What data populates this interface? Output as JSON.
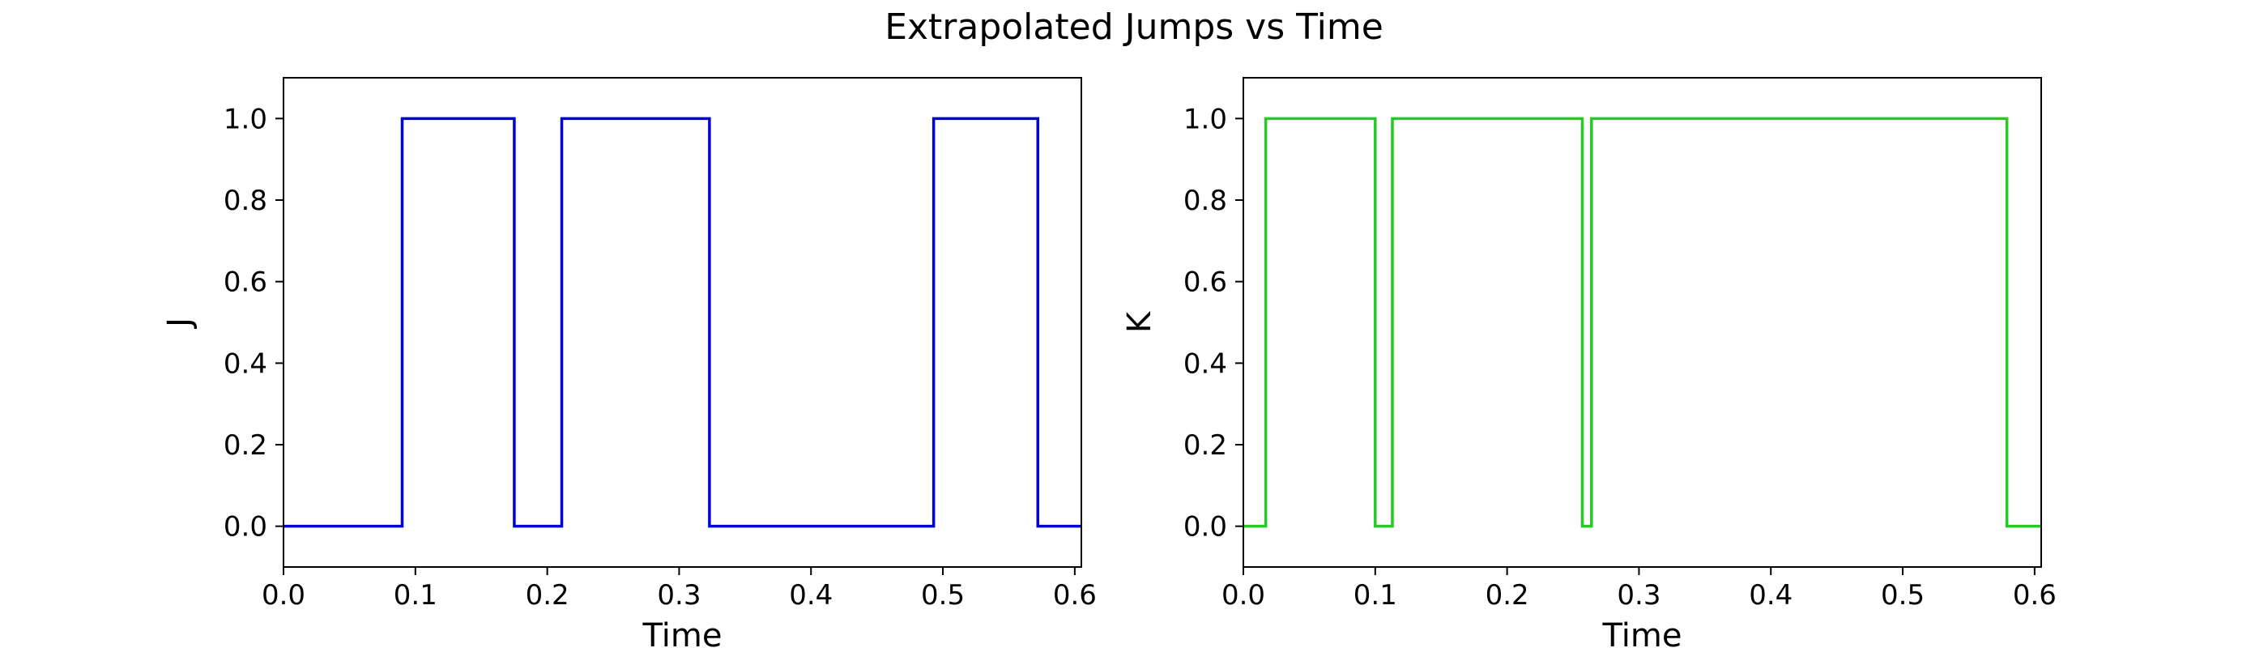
{
  "suptitle": "Extrapolated Jumps vs Time",
  "chart_data": [
    {
      "type": "line",
      "step": "post",
      "title": "",
      "xlabel": "Time",
      "ylabel": "J",
      "xlim": [
        0.0,
        0.605
      ],
      "ylim": [
        -0.1,
        1.1
      ],
      "xticks": [
        "0.0",
        "0.1",
        "0.2",
        "0.3",
        "0.4",
        "0.5",
        "0.6"
      ],
      "yticks": [
        "0.0",
        "0.2",
        "0.4",
        "0.6",
        "0.8",
        "1.0"
      ],
      "grid": false,
      "color": "#0000dd",
      "series": [
        {
          "x": [
            0.0,
            0.09,
            0.175,
            0.211,
            0.323,
            0.493,
            0.572,
            0.605
          ],
          "y": [
            0,
            1,
            0,
            1,
            0,
            1,
            0,
            0
          ]
        }
      ]
    },
    {
      "type": "line",
      "step": "post",
      "title": "",
      "xlabel": "Time",
      "ylabel": "K",
      "xlim": [
        0.0,
        0.605
      ],
      "ylim": [
        -0.1,
        1.1
      ],
      "xticks": [
        "0.0",
        "0.1",
        "0.2",
        "0.3",
        "0.4",
        "0.5",
        "0.6"
      ],
      "yticks": [
        "0.0",
        "0.2",
        "0.4",
        "0.6",
        "0.8",
        "1.0"
      ],
      "grid": false,
      "color": "#22cc22",
      "series": [
        {
          "x": [
            0.0,
            0.017,
            0.1,
            0.113,
            0.257,
            0.264,
            0.579,
            0.605
          ],
          "y": [
            0,
            1,
            0,
            1,
            0,
            1,
            0,
            0
          ]
        }
      ]
    }
  ]
}
